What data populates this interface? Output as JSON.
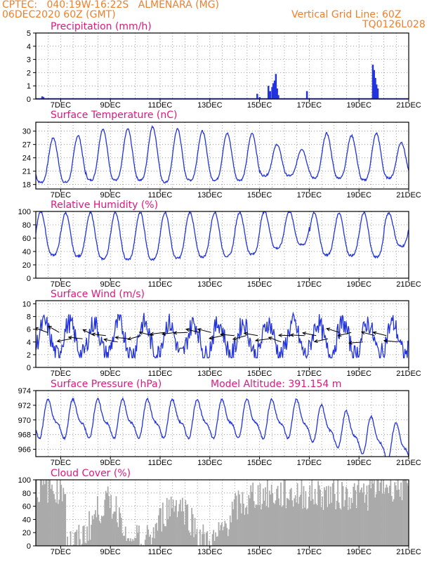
{
  "header": {
    "station": "CPTEC:   040:19W-16:22S   ALMENARA (MG)",
    "run": "06DEC2020 60Z (GMT)",
    "grid_note": "Vertical Grid Line: 60Z",
    "code": "TQ0126L028"
  },
  "colors": {
    "header": "#f07f2a",
    "title": "#e0177f",
    "line": "#2233dd",
    "cloud": "#aaaaaa",
    "grid": "#888888"
  },
  "x_axis": {
    "labels": [
      "7DEC",
      "9DEC",
      "11DEC",
      "13DEC",
      "15DEC",
      "17DEC",
      "19DEC",
      "21DEC"
    ],
    "range_days": [
      6.0,
      21.0
    ]
  },
  "chart_data": [
    {
      "type": "bar",
      "title": "Precipitation (mm/h)",
      "ylim": [
        0,
        5
      ],
      "yticks": [
        "0",
        "1",
        "2",
        "3",
        "4",
        "5"
      ],
      "events": [
        {
          "t": 6.05,
          "v": 0.05
        },
        {
          "t": 6.25,
          "v": 0.2
        },
        {
          "t": 6.3,
          "v": 0.15
        },
        {
          "t": 14.9,
          "v": 0.4
        },
        {
          "t": 15.0,
          "v": 0.15
        },
        {
          "t": 15.35,
          "v": 1.0
        },
        {
          "t": 15.42,
          "v": 0.6
        },
        {
          "t": 15.5,
          "v": 0.9
        },
        {
          "t": 15.55,
          "v": 1.2
        },
        {
          "t": 15.6,
          "v": 1.4
        },
        {
          "t": 15.65,
          "v": 1.9
        },
        {
          "t": 15.7,
          "v": 0.8
        },
        {
          "t": 15.75,
          "v": 0.3
        },
        {
          "t": 16.9,
          "v": 0.6
        },
        {
          "t": 19.55,
          "v": 2.6
        },
        {
          "t": 19.6,
          "v": 2.2
        },
        {
          "t": 19.65,
          "v": 1.6
        },
        {
          "t": 19.7,
          "v": 1.1
        },
        {
          "t": 19.75,
          "v": 0.8
        }
      ]
    },
    {
      "type": "line",
      "title": "Surface Temperature (nC)",
      "ylim": [
        17,
        32
      ],
      "yticks": [
        "18",
        "21",
        "24",
        "27",
        "30"
      ],
      "minima": [
        18.5,
        18.5,
        19,
        19,
        19,
        18.5,
        19,
        19,
        19,
        20,
        20,
        19.5,
        19.5,
        19,
        19.5,
        19.5
      ],
      "maxima": [
        28.5,
        29,
        30.5,
        30.5,
        31,
        30.5,
        30,
        29.5,
        29.5,
        27,
        26,
        29.5,
        29,
        29.5,
        27.5,
        29
      ]
    },
    {
      "type": "line",
      "title": "Relative Humidity (%)",
      "ylim": [
        0,
        100
      ],
      "yticks": [
        "0",
        "20",
        "40",
        "60",
        "80",
        "100"
      ],
      "minima": [
        35,
        33,
        29,
        28,
        28,
        30,
        32,
        33,
        36,
        45,
        50,
        35,
        34,
        32,
        48,
        38
      ],
      "maxima": [
        100,
        98,
        98,
        99,
        99,
        99,
        99,
        99,
        99,
        100,
        100,
        98,
        98,
        98,
        98,
        99
      ]
    },
    {
      "type": "line",
      "title": "Surface Wind (m/s)",
      "ylim": [
        0,
        10.5
      ],
      "yticks": [
        "0",
        "2",
        "4",
        "6",
        "8",
        "10"
      ],
      "arrow_base_levels": [
        4,
        5.5,
        5.5,
        4.5,
        4.5,
        5,
        5,
        4,
        4.5,
        5,
        5,
        5.5,
        5.5,
        5.5,
        5.5,
        5.5,
        5,
        5,
        5,
        5,
        4.5,
        4,
        5,
        5,
        5,
        4.5,
        5.5,
        5.5,
        4,
        5,
        5,
        4
      ]
    },
    {
      "type": "line",
      "title": "Surface Pressure (hPa)",
      "subtitle": "Model Altitude: 391.154 m",
      "ylim": [
        965,
        974
      ],
      "yticks": [
        "966",
        "968",
        "970",
        "972",
        "974"
      ]
    },
    {
      "type": "bar",
      "title": "Cloud Cover (%)",
      "ylim": [
        0,
        100
      ],
      "yticks": [
        "0",
        "20",
        "40",
        "60",
        "80",
        "100"
      ]
    }
  ]
}
